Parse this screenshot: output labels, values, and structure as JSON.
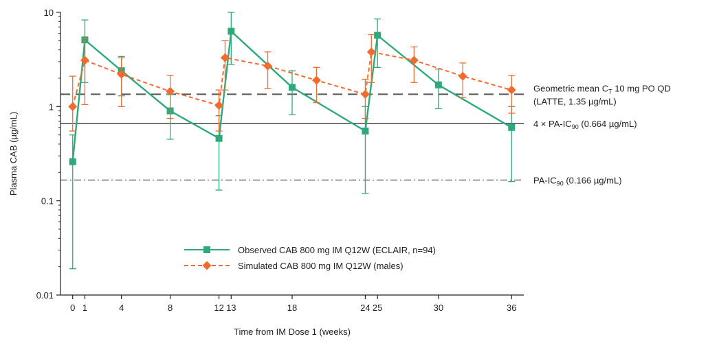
{
  "chart_data": {
    "type": "line",
    "xlabel": "Time from IM Dose 1 (weeks)",
    "ylabel": "Plasma CAB (µg/mL)",
    "yscale": "log",
    "ylim": [
      0.01,
      10
    ],
    "xlim": [
      -1,
      37
    ],
    "x_ticks": [
      0,
      1,
      4,
      8,
      12,
      13,
      18,
      24,
      25,
      30,
      36
    ],
    "y_ticks": [
      {
        "value": 0.01,
        "label": "0.01"
      },
      {
        "value": 0.1,
        "label": "0.1"
      },
      {
        "value": 1,
        "label": "1"
      },
      {
        "value": 10,
        "label": "10"
      }
    ],
    "series": [
      {
        "name": "Observed CAB 800 mg IM Q12W (ECLAIR, n=94)",
        "color": "#2eaa7a",
        "marker": "square",
        "line": "solid",
        "points": [
          {
            "x": 0,
            "y": 0.26,
            "lo": 0.019,
            "hi": 0.5
          },
          {
            "x": 1,
            "y": 5.1,
            "lo": 1.8,
            "hi": 8.3
          },
          {
            "x": 4,
            "y": 2.4,
            "lo": 1.3,
            "hi": 3.4
          },
          {
            "x": 8,
            "y": 0.9,
            "lo": 0.45,
            "hi": 1.35
          },
          {
            "x": 12,
            "y": 0.46,
            "lo": 0.13,
            "hi": 0.8
          },
          {
            "x": 13,
            "y": 6.3,
            "lo": 2.8,
            "hi": 10
          },
          {
            "x": 18,
            "y": 1.6,
            "lo": 0.82,
            "hi": 2.4
          },
          {
            "x": 24,
            "y": 0.55,
            "lo": 0.12,
            "hi": 1.0
          },
          {
            "x": 25,
            "y": 5.7,
            "lo": 2.6,
            "hi": 8.5
          },
          {
            "x": 30,
            "y": 1.7,
            "lo": 0.95,
            "hi": 2.5
          },
          {
            "x": 36,
            "y": 0.6,
            "lo": 0.16,
            "hi": 1.0
          }
        ]
      },
      {
        "name": "Simulated CAB 800 mg IM Q12W (males)",
        "color": "#f26b2e",
        "marker": "diamond",
        "line": "dashed",
        "points": [
          {
            "x": 0,
            "y": 1.0,
            "lo": 0.55,
            "hi": 2.1
          },
          {
            "x": 1,
            "y": 3.1,
            "lo": 1.05,
            "hi": 5.3
          },
          {
            "x": 4,
            "y": 2.2,
            "lo": 1.0,
            "hi": 3.3
          },
          {
            "x": 8,
            "y": 1.45,
            "lo": 0.75,
            "hi": 2.15
          },
          {
            "x": 12,
            "y": 1.03,
            "lo": 0.55,
            "hi": 1.5
          },
          {
            "x": 12.5,
            "y": 3.3,
            "lo": 1.5,
            "hi": 5.0
          },
          {
            "x": 16,
            "y": 2.7,
            "lo": 1.55,
            "hi": 3.8
          },
          {
            "x": 20,
            "y": 1.9,
            "lo": 1.1,
            "hi": 2.6
          },
          {
            "x": 24,
            "y": 1.35,
            "lo": 0.75,
            "hi": 1.95
          },
          {
            "x": 24.5,
            "y": 3.8,
            "lo": 1.8,
            "hi": 5.8
          },
          {
            "x": 28,
            "y": 3.1,
            "lo": 1.8,
            "hi": 4.3
          },
          {
            "x": 32,
            "y": 2.1,
            "lo": 1.25,
            "hi": 2.9
          },
          {
            "x": 36,
            "y": 1.5,
            "lo": 0.85,
            "hi": 2.15
          }
        ]
      }
    ],
    "reference_lines": [
      {
        "name": "geometric-mean-ct",
        "y": 1.35,
        "style": "dashed",
        "color": "#555555",
        "label_line1": "Geometric mean C",
        "label_line1_sub": "T",
        "label_line1_rest": " 10 mg PO QD",
        "label_line2": "(LATTE, 1.35 µg/mL)"
      },
      {
        "name": "four-pa-ic90",
        "y": 0.664,
        "style": "solid",
        "color": "#444444",
        "label_line1": "4 × PA-IC",
        "label_line1_sub": "90",
        "label_line1_rest": " (0.664 µg/mL)"
      },
      {
        "name": "pa-ic90",
        "y": 0.166,
        "style": "dashdot",
        "color": "#666666",
        "label_line1": "PA-IC",
        "label_line1_sub": "90",
        "label_line1_rest": " (0.166 µg/mL)"
      }
    ],
    "legend_position": "bottom-center"
  }
}
